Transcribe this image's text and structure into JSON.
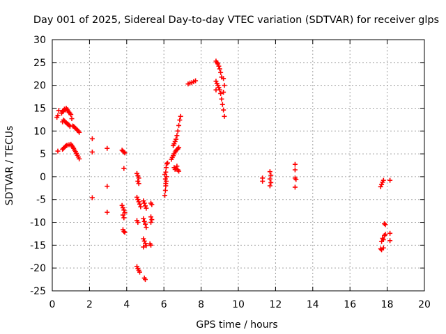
{
  "chart_data": {
    "type": "scatter",
    "title": "Day 001 of 2025, Sidereal Day-to-day VTEC variation (SDTVAR) for receiver glps",
    "xlabel": "GPS time / hours",
    "ylabel": "SDTVAR / TECUs",
    "xlim": [
      0,
      20
    ],
    "ylim": [
      -25,
      30
    ],
    "xticks": [
      0,
      2,
      4,
      6,
      8,
      10,
      12,
      14,
      16,
      18,
      20
    ],
    "yticks": [
      -25,
      -20,
      -15,
      -10,
      -5,
      0,
      5,
      10,
      15,
      20,
      25,
      30
    ],
    "grid": true,
    "marker": "+",
    "series": [
      {
        "name": "SDTVAR",
        "color": "#ff0000",
        "points": [
          [
            0.25,
            13.0
          ],
          [
            0.3,
            13.4
          ],
          [
            0.35,
            14.5
          ],
          [
            0.5,
            13.9
          ],
          [
            0.55,
            14.2
          ],
          [
            0.6,
            14.5
          ],
          [
            0.65,
            14.8
          ],
          [
            0.7,
            14.6
          ],
          [
            0.75,
            15.0
          ],
          [
            0.8,
            14.7
          ],
          [
            0.85,
            14.4
          ],
          [
            0.9,
            14.1
          ],
          [
            0.95,
            13.9
          ],
          [
            1.0,
            13.6
          ],
          [
            0.55,
            12.0
          ],
          [
            0.6,
            12.4
          ],
          [
            0.65,
            12.2
          ],
          [
            0.7,
            12.0
          ],
          [
            0.75,
            11.8
          ],
          [
            0.8,
            11.6
          ],
          [
            0.85,
            11.5
          ],
          [
            0.9,
            11.3
          ],
          [
            0.95,
            11.0
          ],
          [
            1.05,
            12.7
          ],
          [
            1.1,
            11.1
          ],
          [
            1.15,
            11.0
          ],
          [
            1.2,
            10.8
          ],
          [
            1.25,
            10.6
          ],
          [
            1.3,
            10.4
          ],
          [
            1.35,
            10.2
          ],
          [
            1.4,
            10.0
          ],
          [
            1.45,
            9.7
          ],
          [
            0.3,
            5.6
          ],
          [
            0.55,
            6.0
          ],
          [
            0.6,
            6.2
          ],
          [
            0.65,
            6.4
          ],
          [
            0.7,
            6.6
          ],
          [
            0.75,
            6.8
          ],
          [
            0.8,
            6.9
          ],
          [
            0.9,
            7.0
          ],
          [
            1.0,
            7.1
          ],
          [
            1.05,
            6.8
          ],
          [
            1.1,
            6.5
          ],
          [
            1.15,
            6.2
          ],
          [
            1.2,
            5.8
          ],
          [
            1.25,
            5.5
          ],
          [
            1.3,
            5.1
          ],
          [
            1.35,
            4.7
          ],
          [
            1.4,
            4.3
          ],
          [
            1.45,
            3.9
          ],
          [
            2.15,
            8.3
          ],
          [
            2.15,
            5.4
          ],
          [
            2.15,
            -4.6
          ],
          [
            2.95,
            6.2
          ],
          [
            2.95,
            -2.1
          ],
          [
            2.95,
            -7.8
          ],
          [
            3.75,
            5.8
          ],
          [
            3.8,
            5.6
          ],
          [
            3.85,
            5.4
          ],
          [
            3.9,
            5.2
          ],
          [
            3.85,
            1.8
          ],
          [
            3.75,
            -6.3
          ],
          [
            3.8,
            -6.8
          ],
          [
            3.85,
            -7.3
          ],
          [
            3.9,
            -7.9
          ],
          [
            3.8,
            -8.4
          ],
          [
            3.85,
            -9.0
          ],
          [
            3.8,
            -11.6
          ],
          [
            3.85,
            -12.0
          ],
          [
            3.9,
            -12.2
          ],
          [
            4.55,
            0.7
          ],
          [
            4.6,
            0.2
          ],
          [
            4.65,
            -0.3
          ],
          [
            4.6,
            -1.0
          ],
          [
            4.65,
            -1.5
          ],
          [
            4.55,
            -4.5
          ],
          [
            4.6,
            -5.0
          ],
          [
            4.65,
            -5.5
          ],
          [
            4.7,
            -6.0
          ],
          [
            4.75,
            -6.6
          ],
          [
            4.9,
            -5.3
          ],
          [
            4.95,
            -5.8
          ],
          [
            5.0,
            -6.4
          ],
          [
            5.05,
            -6.9
          ],
          [
            5.3,
            -5.8
          ],
          [
            5.35,
            -6.1
          ],
          [
            4.55,
            -9.6
          ],
          [
            4.6,
            -10.0
          ],
          [
            4.9,
            -9.2
          ],
          [
            4.95,
            -9.8
          ],
          [
            5.0,
            -10.4
          ],
          [
            5.05,
            -11.1
          ],
          [
            4.9,
            -13.6
          ],
          [
            4.95,
            -14.1
          ],
          [
            5.0,
            -14.6
          ],
          [
            5.05,
            -15.1
          ],
          [
            4.9,
            -15.4
          ],
          [
            5.3,
            -8.8
          ],
          [
            5.35,
            -9.4
          ],
          [
            5.3,
            -10.0
          ],
          [
            5.25,
            -14.7
          ],
          [
            5.3,
            -15.0
          ],
          [
            4.55,
            -19.7
          ],
          [
            4.6,
            -20.1
          ],
          [
            4.65,
            -20.5
          ],
          [
            4.7,
            -20.9
          ],
          [
            4.95,
            -22.2
          ],
          [
            5.0,
            -22.5
          ],
          [
            6.05,
            -4.1
          ],
          [
            6.08,
            -3.0
          ],
          [
            6.1,
            -2.0
          ],
          [
            6.12,
            -1.0
          ],
          [
            6.15,
            0.0
          ],
          [
            6.1,
            1.0
          ],
          [
            6.12,
            2.0
          ],
          [
            6.15,
            2.8
          ],
          [
            6.2,
            3.0
          ],
          [
            6.05,
            0.5
          ],
          [
            6.08,
            -0.5
          ],
          [
            6.1,
            -1.5
          ],
          [
            6.4,
            3.8
          ],
          [
            6.45,
            4.2
          ],
          [
            6.55,
            2.0
          ],
          [
            6.6,
            1.6
          ],
          [
            6.65,
            1.8
          ],
          [
            6.7,
            2.3
          ],
          [
            6.75,
            1.5
          ],
          [
            6.8,
            1.2
          ],
          [
            6.5,
            6.8
          ],
          [
            6.55,
            7.2
          ],
          [
            6.6,
            7.7
          ],
          [
            6.65,
            8.2
          ],
          [
            6.7,
            9.0
          ],
          [
            6.75,
            10.0
          ],
          [
            6.8,
            11.2
          ],
          [
            6.85,
            12.4
          ],
          [
            6.9,
            13.2
          ],
          [
            6.5,
            4.6
          ],
          [
            6.55,
            5.0
          ],
          [
            6.6,
            5.4
          ],
          [
            6.65,
            5.7
          ],
          [
            6.7,
            5.9
          ],
          [
            6.75,
            6.1
          ],
          [
            6.8,
            6.4
          ],
          [
            7.3,
            20.3
          ],
          [
            7.4,
            20.5
          ],
          [
            7.5,
            20.6
          ],
          [
            7.6,
            20.8
          ],
          [
            7.7,
            21.0
          ],
          [
            8.8,
            25.3
          ],
          [
            8.85,
            25.0
          ],
          [
            8.9,
            24.7
          ],
          [
            8.95,
            24.2
          ],
          [
            9.0,
            23.6
          ],
          [
            9.05,
            22.8
          ],
          [
            9.1,
            21.8
          ],
          [
            8.8,
            20.9
          ],
          [
            8.85,
            20.4
          ],
          [
            8.9,
            20.0
          ],
          [
            8.95,
            19.5
          ],
          [
            9.0,
            19.0
          ],
          [
            8.8,
            19.0
          ],
          [
            9.05,
            18.2
          ],
          [
            9.1,
            17.0
          ],
          [
            9.15,
            15.8
          ],
          [
            9.2,
            14.6
          ],
          [
            9.25,
            13.2
          ],
          [
            9.2,
            21.5
          ],
          [
            9.25,
            20.0
          ],
          [
            9.2,
            18.5
          ],
          [
            11.3,
            -0.3
          ],
          [
            11.3,
            -1.0
          ],
          [
            11.7,
            1.1
          ],
          [
            11.75,
            0.3
          ],
          [
            11.7,
            -0.5
          ],
          [
            11.75,
            -1.3
          ],
          [
            11.7,
            -2.0
          ],
          [
            13.05,
            2.7
          ],
          [
            13.05,
            1.5
          ],
          [
            13.05,
            -0.3
          ],
          [
            13.1,
            -0.6
          ],
          [
            13.05,
            -2.3
          ],
          [
            17.65,
            -2.2
          ],
          [
            17.7,
            -1.7
          ],
          [
            17.75,
            -1.2
          ],
          [
            17.8,
            -0.8
          ],
          [
            18.15,
            -0.8
          ],
          [
            17.85,
            -10.3
          ],
          [
            17.9,
            -10.5
          ],
          [
            17.75,
            -13.5
          ],
          [
            17.8,
            -13.8
          ],
          [
            17.85,
            -12.9
          ],
          [
            17.9,
            -12.6
          ],
          [
            17.7,
            -14.2
          ],
          [
            17.65,
            -15.8
          ],
          [
            17.7,
            -16.0
          ],
          [
            17.8,
            -15.6
          ],
          [
            18.15,
            -12.4
          ],
          [
            18.15,
            -14.0
          ]
        ]
      }
    ]
  }
}
